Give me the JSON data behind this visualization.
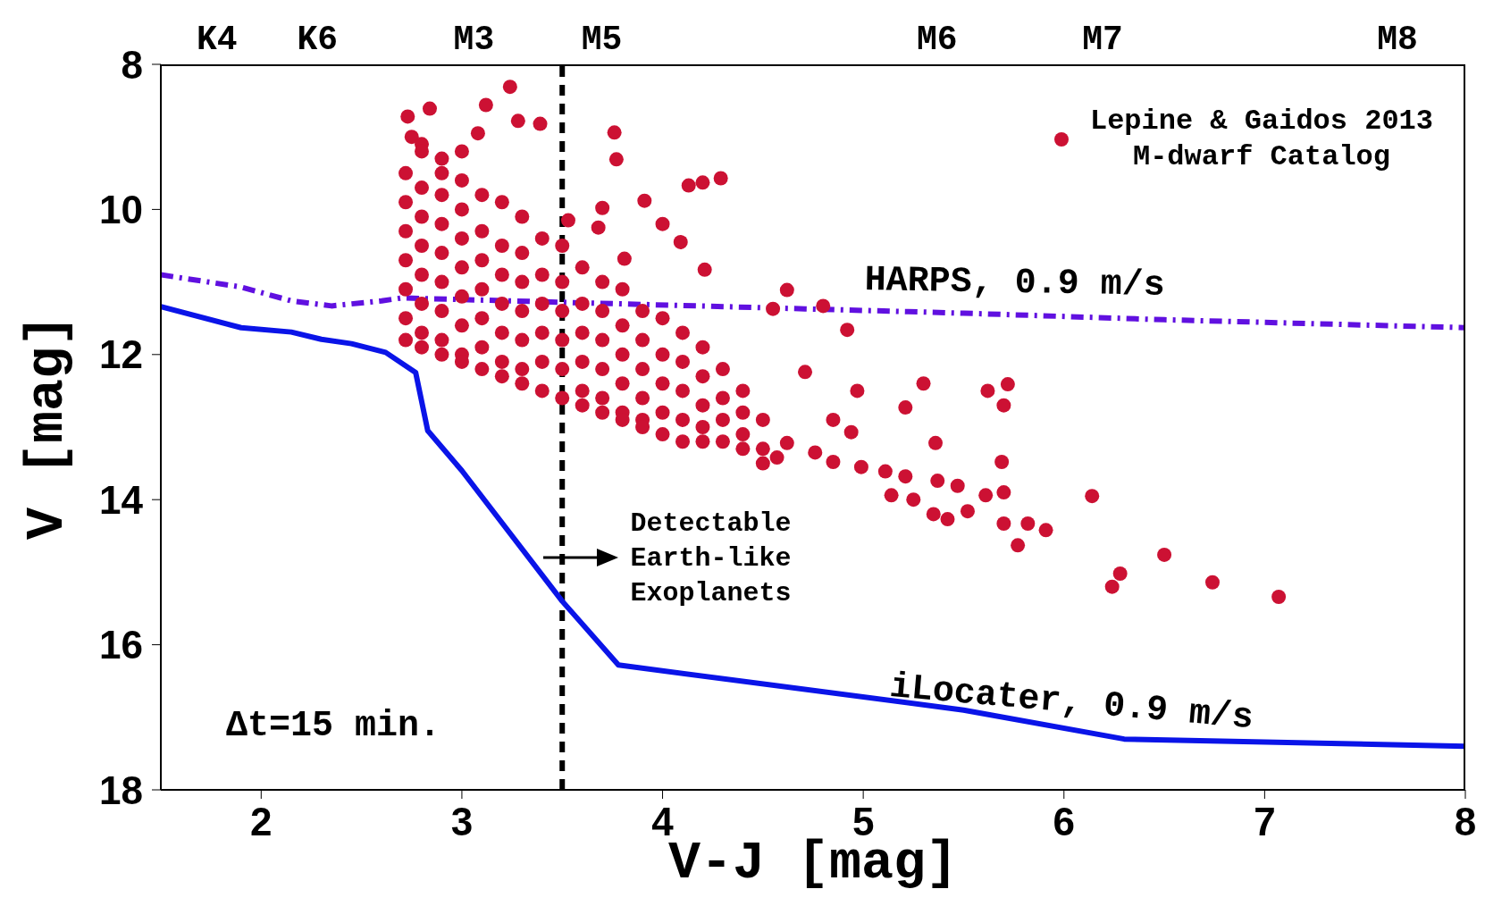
{
  "chart_data": {
    "type": "scatter",
    "xlabel": "V-J [mag]",
    "ylabel": "V [mag]",
    "xlim": [
      1.5,
      8
    ],
    "xticks": [
      2,
      3,
      4,
      5,
      6,
      7,
      8
    ],
    "ylim": [
      18,
      8
    ],
    "yticks": [
      8,
      10,
      12,
      14,
      16,
      18
    ],
    "legend": "top right",
    "marker": "circle",
    "ref_lines": [
      {
        "axis": "x",
        "value": 3.5,
        "color": "#000000",
        "line_style": "dashed"
      }
    ],
    "annotations": [
      "Detectable\nEarth-like\nExoplanets",
      "Δt=15 min.",
      "K4",
      "K6",
      "M3",
      "M5",
      "M6",
      "M7",
      "M8"
    ],
    "series": [
      {
        "name": "Lepine & Gaidos 2013\nM-dwarf Catalog",
        "color": "#cc1133",
        "x": [
          3.24,
          3.12,
          2.84,
          2.73,
          3.28,
          3.39,
          3.08,
          3.76,
          3.77,
          4.29,
          4.13,
          4.2,
          3.91,
          3.7,
          4.09,
          4.21,
          3.68,
          3.53,
          3.81,
          4.0,
          4.62,
          4.55,
          4.8,
          4.92,
          4.71,
          4.97,
          5.3,
          5.21,
          5.62,
          5.72,
          5.7,
          5.36,
          4.85,
          4.94,
          5.69,
          5.7,
          5.61,
          5.52,
          5.42,
          5.35,
          5.47,
          5.37,
          5.7,
          5.82,
          5.91,
          5.77,
          6.14,
          6.5,
          6.28,
          6.24,
          6.74,
          7.07,
          5.21,
          5.11,
          4.99,
          5.14,
          5.25,
          4.85,
          4.76,
          4.62,
          4.57,
          2.75,
          2.8,
          2.9,
          3.0,
          2.72,
          2.72,
          2.72,
          2.72,
          2.72,
          2.72,
          2.72,
          2.8,
          2.8,
          2.8,
          2.8,
          2.8,
          2.8,
          2.8,
          2.8,
          2.9,
          2.9,
          2.9,
          2.9,
          2.9,
          2.9,
          2.9,
          2.9,
          3.0,
          3.0,
          3.0,
          3.0,
          3.0,
          3.0,
          3.0,
          3.0,
          3.1,
          3.1,
          3.1,
          3.1,
          3.1,
          3.1,
          3.1,
          3.2,
          3.2,
          3.2,
          3.2,
          3.2,
          3.2,
          3.2,
          3.3,
          3.3,
          3.3,
          3.3,
          3.3,
          3.3,
          3.3,
          3.4,
          3.4,
          3.4,
          3.4,
          3.4,
          3.4,
          3.5,
          3.5,
          3.5,
          3.5,
          3.5,
          3.5,
          3.6,
          3.6,
          3.6,
          3.6,
          3.6,
          3.6,
          3.7,
          3.7,
          3.7,
          3.7,
          3.7,
          3.7,
          3.8,
          3.8,
          3.8,
          3.8,
          3.8,
          3.8,
          3.9,
          3.9,
          3.9,
          3.9,
          3.9,
          3.9,
          4.0,
          4.0,
          4.0,
          4.0,
          4.0,
          4.1,
          4.1,
          4.1,
          4.1,
          4.1,
          4.2,
          4.2,
          4.2,
          4.2,
          4.2,
          4.3,
          4.3,
          4.3,
          4.3,
          4.4,
          4.4,
          4.4,
          4.4,
          4.5,
          4.5,
          4.5
        ],
        "values": [
          8.31,
          8.56,
          8.61,
          8.72,
          8.78,
          8.82,
          8.95,
          8.94,
          9.31,
          9.57,
          9.67,
          9.63,
          9.88,
          9.98,
          10.45,
          10.83,
          10.25,
          10.15,
          10.68,
          10.2,
          11.11,
          11.37,
          11.33,
          11.66,
          12.24,
          12.5,
          12.4,
          12.73,
          12.5,
          12.41,
          12.7,
          13.22,
          12.9,
          13.07,
          13.48,
          13.9,
          13.94,
          14.16,
          14.27,
          14.2,
          13.81,
          13.74,
          14.33,
          14.33,
          14.42,
          14.63,
          13.95,
          14.76,
          15.02,
          15.2,
          15.14,
          15.34,
          13.68,
          13.61,
          13.55,
          13.94,
          14.0,
          13.48,
          13.35,
          13.22,
          13.42,
          9.0,
          9.1,
          9.5,
          9.2,
          9.5,
          9.9,
          10.3,
          10.7,
          11.1,
          11.5,
          11.8,
          9.2,
          9.7,
          10.1,
          10.5,
          10.9,
          11.3,
          11.7,
          11.9,
          9.3,
          9.8,
          10.2,
          10.6,
          11.0,
          11.4,
          11.8,
          12.0,
          9.6,
          10.0,
          10.4,
          10.8,
          11.2,
          11.6,
          12.0,
          12.1,
          9.8,
          10.3,
          10.7,
          11.1,
          11.5,
          11.9,
          12.2,
          9.9,
          10.5,
          10.9,
          11.3,
          11.7,
          12.1,
          12.3,
          10.1,
          10.6,
          11.0,
          11.4,
          11.8,
          12.2,
          12.4,
          10.4,
          10.9,
          11.3,
          11.7,
          12.1,
          12.5,
          10.5,
          11.0,
          11.4,
          11.8,
          12.2,
          12.6,
          10.8,
          11.3,
          11.7,
          12.1,
          12.5,
          12.7,
          11.0,
          11.4,
          11.8,
          12.2,
          12.6,
          12.8,
          11.1,
          11.6,
          12.0,
          12.4,
          12.8,
          12.9,
          11.4,
          11.8,
          12.2,
          12.6,
          12.9,
          13.0,
          11.5,
          12.0,
          12.4,
          12.8,
          13.1,
          11.7,
          12.1,
          12.5,
          12.9,
          13.2,
          11.9,
          12.3,
          12.7,
          13.0,
          13.2,
          12.2,
          12.6,
          12.9,
          13.2,
          12.5,
          12.8,
          13.1,
          13.3,
          12.9,
          13.3,
          13.5
        ]
      },
      {
        "name": "HARPS, 0.9 m/s",
        "type": "line",
        "color": "#6010e0",
        "line_style": "dashed",
        "marker": "none",
        "x": [
          1.5,
          1.9,
          2.15,
          2.35,
          2.6,
          2.7,
          4.71,
          5.5,
          6.5,
          8
        ],
        "values": [
          10.9,
          11.07,
          11.26,
          11.33,
          11.26,
          11.22,
          11.37,
          11.43,
          11.52,
          11.63
        ]
      },
      {
        "name": "iLocater, 0.9 m/s",
        "type": "line",
        "color": "#0a14e8",
        "line_style": "solid",
        "marker": "none",
        "x": [
          1.5,
          1.9,
          2.15,
          2.3,
          2.45,
          2.62,
          2.77,
          2.83,
          3.0,
          3.5,
          3.78,
          5.5,
          6.3,
          8
        ],
        "values": [
          11.34,
          11.63,
          11.69,
          11.79,
          11.85,
          11.97,
          12.25,
          13.05,
          13.6,
          15.4,
          16.28,
          16.9,
          17.3,
          17.4
        ]
      }
    ]
  }
}
